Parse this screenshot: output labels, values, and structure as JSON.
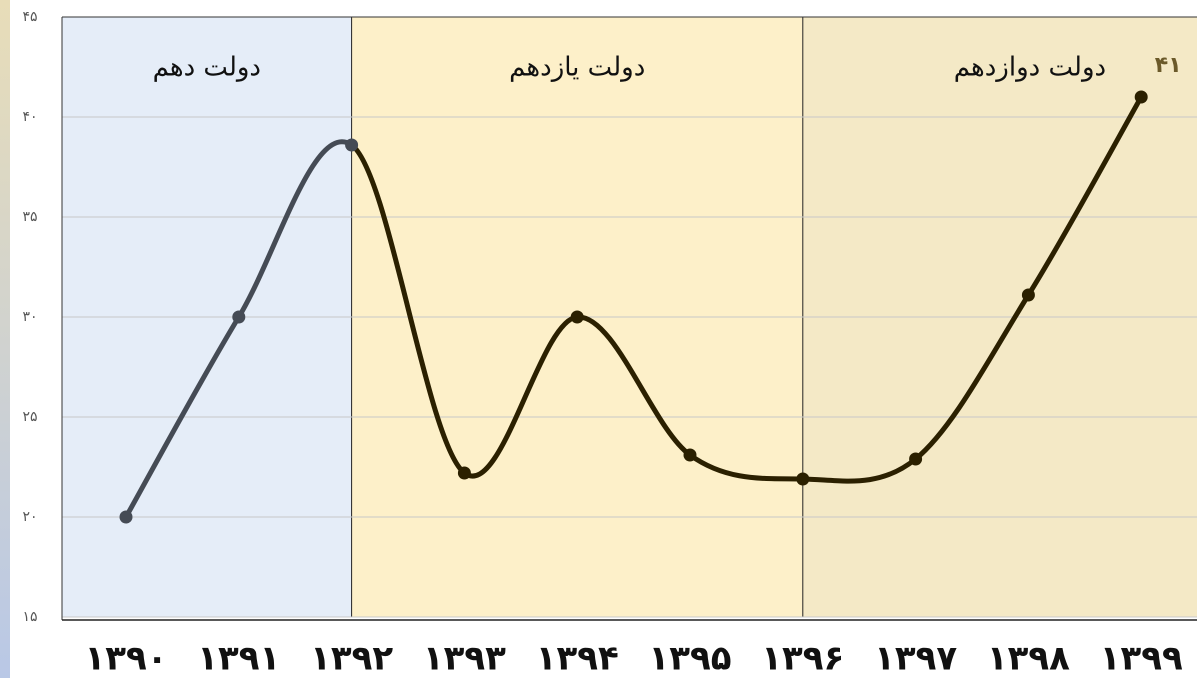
{
  "chart_data": {
    "type": "line",
    "categories": [
      "۱۳۹۰",
      "۱۳۹۱",
      "۱۳۹۲",
      "۱۳۹۳",
      "۱۳۹۴",
      "۱۳۹۵",
      "۱۳۹۶",
      "۱۳۹۷",
      "۱۳۹۸",
      "۱۳۹۹"
    ],
    "series": [
      {
        "values": [
          20,
          30,
          38.6,
          22.2,
          30,
          23.1,
          21.9,
          22.9,
          31.1,
          41
        ],
        "value_labels": [
          null,
          null,
          null,
          null,
          null,
          null,
          null,
          null,
          null,
          "۴۱"
        ]
      }
    ],
    "ylim": [
      15,
      45
    ],
    "yticks": [
      {
        "value": 15,
        "label": "۱۵"
      },
      {
        "value": 20,
        "label": "۲۰"
      },
      {
        "value": 25,
        "label": "۲۵"
      },
      {
        "value": 30,
        "label": "۳۰"
      },
      {
        "value": 35,
        "label": "۳۵"
      },
      {
        "value": 40,
        "label": "۴۰"
      },
      {
        "value": 45,
        "label": "۴۵"
      }
    ],
    "grid": true,
    "regions": [
      {
        "label": "دولت دهم",
        "from": "۱۳۹۰",
        "to": "۱۳۹۲",
        "color": "#e5edf8",
        "line_color": "#454b55"
      },
      {
        "label": "دولت یازدهم",
        "from": "۱۳۹۲",
        "to": "۱۳۹۶",
        "color": "#fdf0c9",
        "line_color": "#2b2000"
      },
      {
        "label": "دولت دوازدهم",
        "from": "۱۳۹۶",
        "to": "۱۳۹۹",
        "color": "#f4e9c6",
        "line_color": "#2b2000"
      }
    ]
  }
}
